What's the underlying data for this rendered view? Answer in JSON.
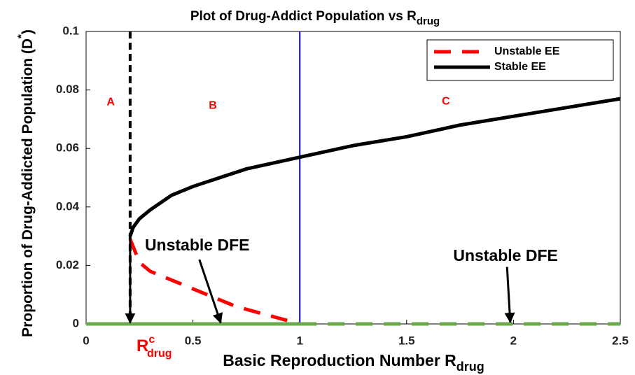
{
  "chart_data": {
    "type": "line",
    "title": "Plot of Drug-Addict Population vs R",
    "title_subscript": "drug",
    "xlabel": "Basic Reproduction Number R",
    "xlabel_subscript": "drug",
    "ylabel": "Proportion of Drug-Addicted Population (D",
    "ylabel_superscript": "*",
    "ylabel_end": ")",
    "threshold_label": {
      "base": "R",
      "sup": "c",
      "sub": "drug"
    },
    "xlim": [
      0,
      2.5
    ],
    "ylim": [
      0,
      0.1
    ],
    "xticks": [
      0,
      0.5,
      1,
      1.5,
      2,
      2.5
    ],
    "yticks": [
      0,
      0.02,
      0.04,
      0.06,
      0.08,
      0.1
    ],
    "legend": "northeast",
    "series": [
      {
        "name": "Unstable EE",
        "color": "#ff0000",
        "dash": true,
        "x": [
          0.206,
          0.25,
          0.3,
          0.4,
          0.5,
          0.6,
          0.7,
          0.8,
          0.9,
          1.0
        ],
        "values": [
          0.029,
          0.021,
          0.018,
          0.015,
          0.012,
          0.009,
          0.006,
          0.004,
          0.002,
          0
        ]
      },
      {
        "name": "Stable EE",
        "color": "#000000",
        "dash": false,
        "x": [
          0.206,
          0.22,
          0.25,
          0.3,
          0.4,
          0.5,
          0.75,
          1,
          1.25,
          1.5,
          1.75,
          2,
          2.25,
          2.5
        ],
        "values": [
          0.03,
          0.033,
          0.036,
          0.039,
          0.044,
          0.047,
          0.053,
          0.057,
          0.061,
          0.064,
          0.068,
          0.071,
          0.074,
          0.077
        ]
      },
      {
        "color": "#6aa84f",
        "dash": false,
        "x": [
          0,
          1
        ],
        "values": [
          0,
          0
        ]
      },
      {
        "color": "#6aa84f",
        "dash": true,
        "x": [
          1,
          2.5
        ],
        "values": [
          0,
          0
        ]
      }
    ],
    "vlines": [
      {
        "x": 0.206,
        "color": "#000000",
        "dash": true
      },
      {
        "x": 1,
        "color": "#0000ff",
        "dash": false
      }
    ],
    "region_labels": [
      {
        "text": "A",
        "x": 0.115,
        "y": 0.0758
      },
      {
        "text": "B",
        "x": 0.593,
        "y": 0.0746
      },
      {
        "text": "C",
        "x": 1.684,
        "y": 0.076
      }
    ],
    "annotations": [
      {
        "text": "Unstable DFE",
        "x": 0.52,
        "y": 0.0266,
        "arrow_from": [
          0.53,
          0.022
        ],
        "arrow_to": [
          0.63,
          0.0004
        ]
      },
      {
        "text": "Unstable DFE",
        "x": 1.963,
        "y": 0.023,
        "arrow_from": [
          1.97,
          0.0195
        ],
        "arrow_to": [
          1.985,
          0.0006
        ]
      }
    ],
    "threshold_arrow": {
      "arrow_from": [
        0.206,
        0.03
      ],
      "arrow_to": [
        0.206,
        0.0004
      ]
    }
  }
}
